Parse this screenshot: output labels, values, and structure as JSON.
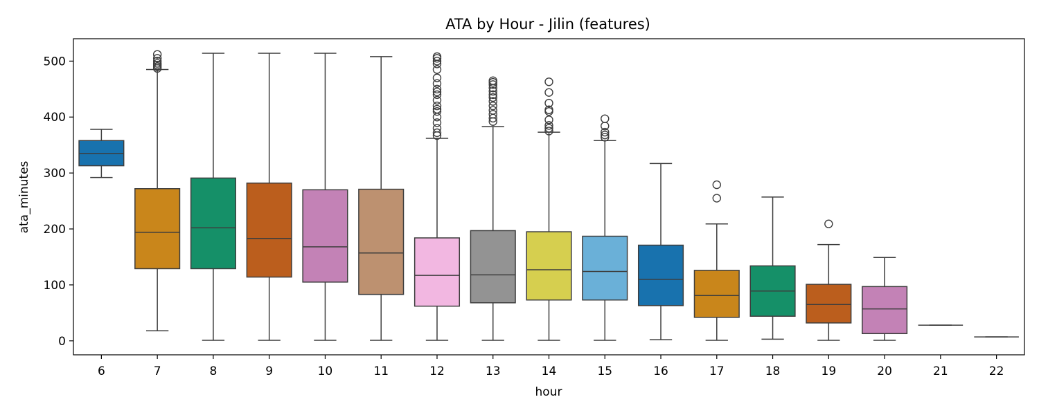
{
  "chart_data": {
    "type": "box",
    "title": "ATA by Hour - Jilin (features)",
    "xlabel": "hour",
    "ylabel": "ata_minutes",
    "ylim": [
      -25,
      540
    ],
    "yticks": [
      0,
      100,
      200,
      300,
      400,
      500
    ],
    "grid": false,
    "categories": [
      "6",
      "7",
      "8",
      "9",
      "10",
      "11",
      "12",
      "13",
      "14",
      "15",
      "16",
      "17",
      "18",
      "19",
      "20",
      "21",
      "22"
    ],
    "boxes": [
      {
        "hour": "6",
        "whisker_low": 292,
        "q1": 313,
        "median": 335,
        "q3": 358,
        "whisker_high": 378,
        "outliers": [],
        "color": "#1872ae"
      },
      {
        "hour": "7",
        "whisker_low": 18,
        "q1": 129,
        "median": 194,
        "q3": 272,
        "whisker_high": 485,
        "outliers": [
          487,
          490,
          493,
          496,
          500,
          505,
          512
        ],
        "color": "#c9861b"
      },
      {
        "hour": "8",
        "whisker_low": 1,
        "q1": 129,
        "median": 202,
        "q3": 291,
        "whisker_high": 514,
        "outliers": [],
        "color": "#159068"
      },
      {
        "hour": "9",
        "whisker_low": 1,
        "q1": 114,
        "median": 183,
        "q3": 282,
        "whisker_high": 514,
        "outliers": [],
        "color": "#bb5e1d"
      },
      {
        "hour": "10",
        "whisker_low": 1,
        "q1": 105,
        "median": 168,
        "q3": 270,
        "whisker_high": 514,
        "outliers": [],
        "color": "#c382b6"
      },
      {
        "hour": "11",
        "whisker_low": 1,
        "q1": 83,
        "median": 157,
        "q3": 271,
        "whisker_high": 508,
        "outliers": [],
        "color": "#bd9170"
      },
      {
        "hour": "12",
        "whisker_low": 1,
        "q1": 62,
        "median": 117,
        "q3": 184,
        "whisker_high": 362,
        "outliers": [
          367,
          372,
          380,
          390,
          400,
          410,
          414,
          420,
          430,
          440,
          445,
          450,
          460,
          470,
          485,
          495,
          500,
          505,
          508
        ],
        "color": "#f2b7e1"
      },
      {
        "hour": "13",
        "whisker_low": 1,
        "q1": 68,
        "median": 118,
        "q3": 197,
        "whisker_high": 383,
        "outliers": [
          392,
          398,
          405,
          412,
          420,
          428,
          435,
          440,
          446,
          452,
          458,
          462,
          465
        ],
        "color": "#939393"
      },
      {
        "hour": "14",
        "whisker_low": 1,
        "q1": 73,
        "median": 127,
        "q3": 195,
        "whisker_high": 373,
        "outliers": [
          375,
          380,
          385,
          395,
          410,
          413,
          425,
          444,
          463
        ],
        "color": "#d6cf4f"
      },
      {
        "hour": "15",
        "whisker_low": 1,
        "q1": 73,
        "median": 124,
        "q3": 187,
        "whisker_high": 358,
        "outliers": [
          364,
          368,
          373,
          384,
          397
        ],
        "color": "#6ab0d8"
      },
      {
        "hour": "16",
        "whisker_low": 2,
        "q1": 63,
        "median": 110,
        "q3": 171,
        "whisker_high": 317,
        "outliers": [],
        "color": "#1872ae"
      },
      {
        "hour": "17",
        "whisker_low": 1,
        "q1": 42,
        "median": 81,
        "q3": 126,
        "whisker_high": 209,
        "outliers": [
          255,
          279
        ],
        "color": "#c9861b"
      },
      {
        "hour": "18",
        "whisker_low": 3,
        "q1": 44,
        "median": 89,
        "q3": 134,
        "whisker_high": 257,
        "outliers": [],
        "color": "#159068"
      },
      {
        "hour": "19",
        "whisker_low": 1,
        "q1": 32,
        "median": 65,
        "q3": 101,
        "whisker_high": 172,
        "outliers": [
          209
        ],
        "color": "#bb5e1d"
      },
      {
        "hour": "20",
        "whisker_low": 1,
        "q1": 13,
        "median": 57,
        "q3": 97,
        "whisker_high": 149,
        "outliers": [],
        "color": "#c382b6"
      },
      {
        "hour": "21",
        "whisker_low": 28,
        "q1": 28,
        "median": 28,
        "q3": 28,
        "whisker_high": 28,
        "outliers": [],
        "color": "#bd9170"
      },
      {
        "hour": "22",
        "whisker_low": 7,
        "q1": 7,
        "median": 7,
        "q3": 7,
        "whisker_high": 7,
        "outliers": [],
        "color": "#f2b7e1"
      }
    ]
  }
}
